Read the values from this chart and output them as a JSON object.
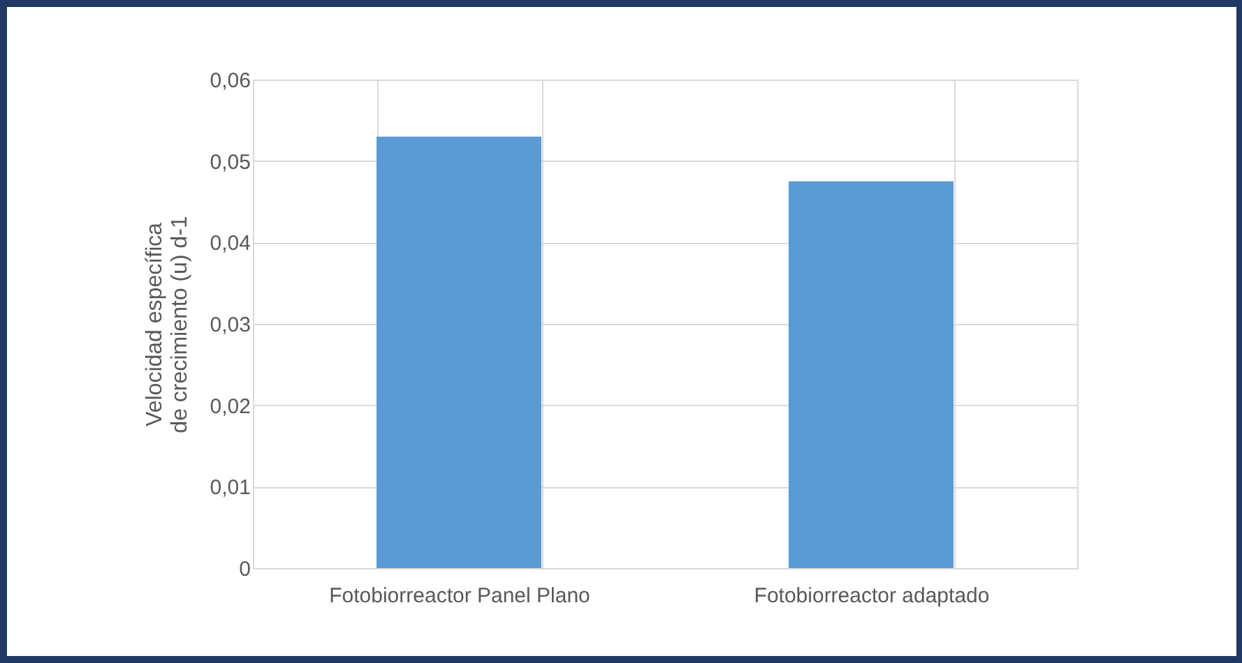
{
  "chart_data": {
    "type": "bar",
    "ylabel": "Velocidad específica de crecimiento (u) d-1",
    "categories": [
      "Fotobiorreactor Panel Plano",
      "Fotobiorreactor adaptado"
    ],
    "values": [
      0.053,
      0.0475
    ],
    "color": "#5b9bd5",
    "ylim": [
      0,
      0.06
    ],
    "yticks": [
      0,
      {
        "value": 0.01,
        "label": "0,01"
      },
      {
        "value": 0.02,
        "label": "0,02"
      },
      {
        "value": 0.03,
        "label": "0,03"
      },
      {
        "value": 0.04,
        "label": "0,04"
      },
      {
        "value": 0.05,
        "label": "0,05"
      },
      {
        "value": 0.06,
        "label": "0,06"
      }
    ],
    "grid": true
  }
}
